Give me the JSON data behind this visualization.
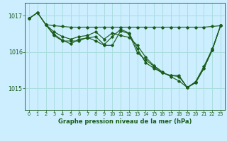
{
  "title": "Graphe pression niveau de la mer (hPa)",
  "background_color": "#cceeff",
  "plot_bg_color": "#cceeff",
  "grid_color": "#aadddd",
  "line_color": "#1a5c1a",
  "xlim": [
    -0.5,
    23.5
  ],
  "ylim": [
    1014.4,
    1017.35
  ],
  "yticks": [
    1015,
    1016,
    1017
  ],
  "xticks": [
    0,
    1,
    2,
    3,
    4,
    5,
    6,
    7,
    8,
    9,
    10,
    11,
    12,
    13,
    14,
    15,
    16,
    17,
    18,
    19,
    20,
    21,
    22,
    23
  ],
  "series_flat_x": [
    2,
    3,
    4,
    5,
    6,
    7,
    8,
    9,
    10,
    11,
    12,
    13,
    14,
    15,
    16,
    17,
    18,
    19,
    20,
    21,
    22,
    23
  ],
  "series_flat_y": [
    1016.75,
    1016.72,
    1016.7,
    1016.68,
    1016.68,
    1016.68,
    1016.68,
    1016.68,
    1016.68,
    1016.68,
    1016.68,
    1016.68,
    1016.68,
    1016.68,
    1016.68,
    1016.68,
    1016.68,
    1016.68,
    1016.68,
    1016.68,
    1016.7,
    1016.72
  ],
  "series1_x": [
    0,
    1,
    2,
    3,
    4,
    5,
    6,
    7,
    8,
    9,
    10,
    11,
    12,
    13,
    14,
    15,
    16,
    17,
    18,
    19,
    20,
    21,
    22,
    23
  ],
  "series1_y": [
    1016.92,
    1017.08,
    1016.75,
    1016.55,
    1016.42,
    1016.35,
    1016.42,
    1016.45,
    1016.55,
    1016.35,
    1016.52,
    1016.45,
    1016.4,
    1016.18,
    1015.85,
    1015.62,
    1015.45,
    1015.32,
    1015.2,
    1015.02,
    1015.18,
    1015.6,
    1016.08,
    1016.72
  ],
  "series2_x": [
    0,
    1,
    2,
    3,
    4,
    5,
    6,
    7,
    8,
    9,
    10,
    11,
    12,
    13,
    14,
    15,
    16,
    17,
    18,
    19,
    20,
    21,
    22,
    23
  ],
  "series2_y": [
    1016.92,
    1017.08,
    1016.75,
    1016.48,
    1016.32,
    1016.22,
    1016.35,
    1016.38,
    1016.42,
    1016.2,
    1016.42,
    1016.62,
    1016.52,
    1016.08,
    1015.7,
    1015.55,
    1015.42,
    1015.35,
    1015.32,
    1015.02,
    1015.15,
    1015.55,
    1016.05,
    1016.72
  ],
  "series3_x": [
    0,
    1,
    2,
    3,
    4,
    5,
    6,
    7,
    8,
    9,
    10,
    11,
    12,
    13,
    14,
    15,
    16,
    17,
    18,
    19,
    20,
    21,
    22,
    23
  ],
  "series3_y": [
    1016.92,
    1017.08,
    1016.75,
    1016.45,
    1016.3,
    1016.3,
    1016.3,
    1016.4,
    1016.3,
    1016.18,
    1016.18,
    1016.58,
    1016.5,
    1015.98,
    1015.78,
    1015.6,
    1015.42,
    1015.35,
    1015.35,
    1015.02,
    1015.15,
    1015.55,
    1016.05,
    1016.72
  ]
}
